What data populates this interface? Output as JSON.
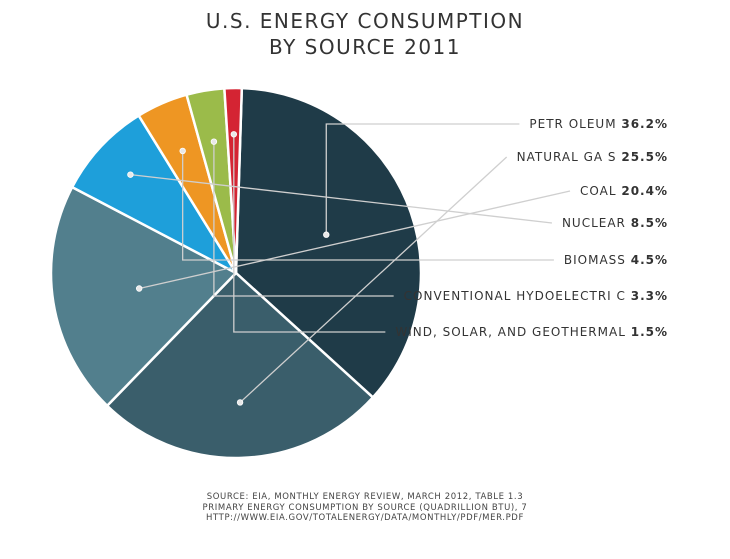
{
  "title_lines": [
    "U.S. ENERGY CONSUMPTION",
    "BY SOURCE 2011"
  ],
  "chart_data": {
    "type": "pie",
    "title": "U.S. ENERGY CONSUMPTION BY SOURCE 2011",
    "slices": [
      {
        "label": "PETROLEUM",
        "display_label": "PETR OLEUM",
        "value": 36.2,
        "value_label": "36.2%",
        "color": "#1f3b48"
      },
      {
        "label": "NATURAL GAS",
        "display_label": "NATURAL GA S",
        "value": 25.5,
        "value_label": "25.5%",
        "color": "#3a5e6b"
      },
      {
        "label": "COAL",
        "display_label": "COAL",
        "value": 20.4,
        "value_label": "20.4%",
        "color": "#527f8d"
      },
      {
        "label": "NUCLEAR",
        "display_label": "NUCLEAR",
        "value": 8.5,
        "value_label": "8.5%",
        "color": "#1e9fda"
      },
      {
        "label": "BIOMASS",
        "display_label": "BIOMASS",
        "value": 4.5,
        "value_label": "4.5%",
        "color": "#ee9623"
      },
      {
        "label": "CONVENTIONAL HYDOELECTRIC",
        "display_label": "CONVENTIONAL HYDOELECTRI C",
        "value": 3.3,
        "value_label": "3.3%",
        "color": "#9bbb4a"
      },
      {
        "label": "WIND, SOLAR, AND GEOTHERMAL",
        "display_label": "WIND, SOLAR, AND GEOTHERMAL",
        "value": 1.5,
        "value_label": "1.5%",
        "color": "#d42433"
      }
    ],
    "legend_placement": "right"
  },
  "source_lines": [
    "SOURCE: EIA, MONTHLY ENERGY REVIEW, MARCH 2012, TABLE 1.3",
    "PRIMARY ENERGY CONSUMPTION BY SOURCE (QUADRILLION BTU), 7",
    "HTTP://WWW.EIA.GOV/TOTALENERGY/DATA/MONTHLY/PDF/MER.PDF"
  ]
}
